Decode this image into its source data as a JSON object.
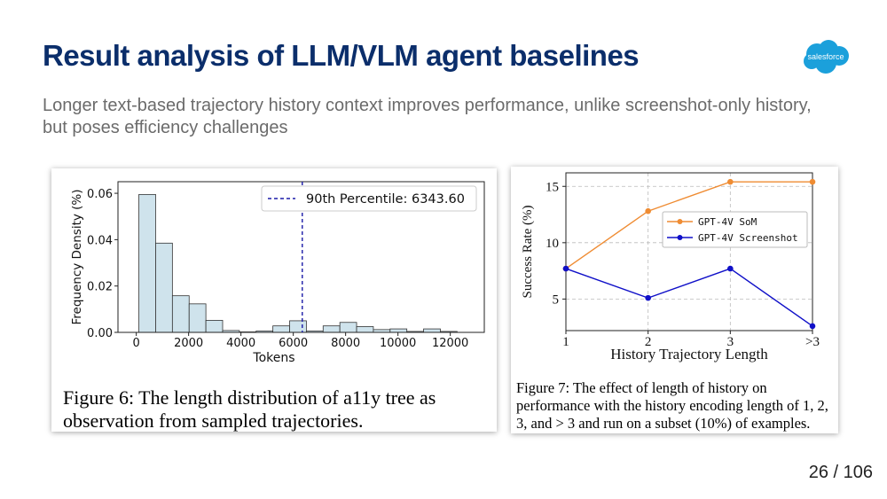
{
  "slide": {
    "title": "Result analysis of LLM/VLM agent baselines",
    "subtitle": "Longer text-based trajectory history context improves performance, unlike screenshot-only history, but poses efficiency challenges",
    "logo_text": "salesforce",
    "page_number": "26 / 106"
  },
  "colors": {
    "title": "#0b2e6b",
    "logo": "#1ba0db",
    "hist_bar": "#cfe3ec",
    "percentile": "#1a1aa8",
    "som": "#ef8c33",
    "screenshot": "#1010c8"
  },
  "figure6": {
    "caption": "Figure 6: The length distribution of a11y tree as observation from sampled trajectories."
  },
  "figure7": {
    "caption": "Figure 7: The effect of length of history on performance with the history encoding length of 1, 2, 3, and > 3 and run on a subset (10%) of examples."
  },
  "chart_data": [
    {
      "type": "bar",
      "subtype": "histogram",
      "xlabel": "Tokens",
      "ylabel": "Frequency Density (%)",
      "xlim": [
        -700,
        13300
      ],
      "ylim": [
        0,
        0.065
      ],
      "x_ticks": [
        0,
        2000,
        4000,
        6000,
        8000,
        10000,
        12000
      ],
      "x_tick_labels": [
        "0",
        "2000",
        "4000",
        "6000",
        "8000",
        "10000",
        "12000"
      ],
      "y_ticks": [
        0,
        0.02,
        0.04,
        0.06
      ],
      "y_tick_labels": [
        "0.00",
        "0.02",
        "0.04",
        "0.06"
      ],
      "bin_width": 640,
      "bins": [
        {
          "x0": 100,
          "value": 0.0595
        },
        {
          "x0": 740,
          "value": 0.0385
        },
        {
          "x0": 1380,
          "value": 0.0158
        },
        {
          "x0": 2020,
          "value": 0.0123
        },
        {
          "x0": 2660,
          "value": 0.0052
        },
        {
          "x0": 3300,
          "value": 0.0008
        },
        {
          "x0": 3940,
          "value": 0.0002
        },
        {
          "x0": 4580,
          "value": 0.0006
        },
        {
          "x0": 5220,
          "value": 0.0028
        },
        {
          "x0": 5860,
          "value": 0.005
        },
        {
          "x0": 6500,
          "value": 0.0006
        },
        {
          "x0": 7140,
          "value": 0.0028
        },
        {
          "x0": 7780,
          "value": 0.0043
        },
        {
          "x0": 8420,
          "value": 0.0025
        },
        {
          "x0": 9060,
          "value": 0.0012
        },
        {
          "x0": 9700,
          "value": 0.0015
        },
        {
          "x0": 10340,
          "value": 0.0004
        },
        {
          "x0": 10980,
          "value": 0.0015
        },
        {
          "x0": 11620,
          "value": 0.0004
        }
      ],
      "percentile_line": {
        "value": 6343.6,
        "label": "90th Percentile: 6343.60"
      },
      "legend_position": "top-right",
      "grid": false
    },
    {
      "type": "line",
      "xlabel": "History Trajectory Length",
      "ylabel": "Success Rate (%)",
      "categories": [
        "1",
        "2",
        "3",
        ">3"
      ],
      "ylim": [
        2.2,
        16.2
      ],
      "y_ticks": [
        5,
        10,
        15
      ],
      "y_tick_labels": [
        "5",
        "10",
        "15"
      ],
      "series": [
        {
          "name": "GPT-4V SoM",
          "values": [
            7.7,
            12.8,
            15.4,
            15.4
          ]
        },
        {
          "name": "GPT-4V Screenshot",
          "values": [
            7.7,
            5.1,
            7.7,
            2.6
          ]
        }
      ],
      "legend_position": "center-right",
      "grid": true
    }
  ]
}
